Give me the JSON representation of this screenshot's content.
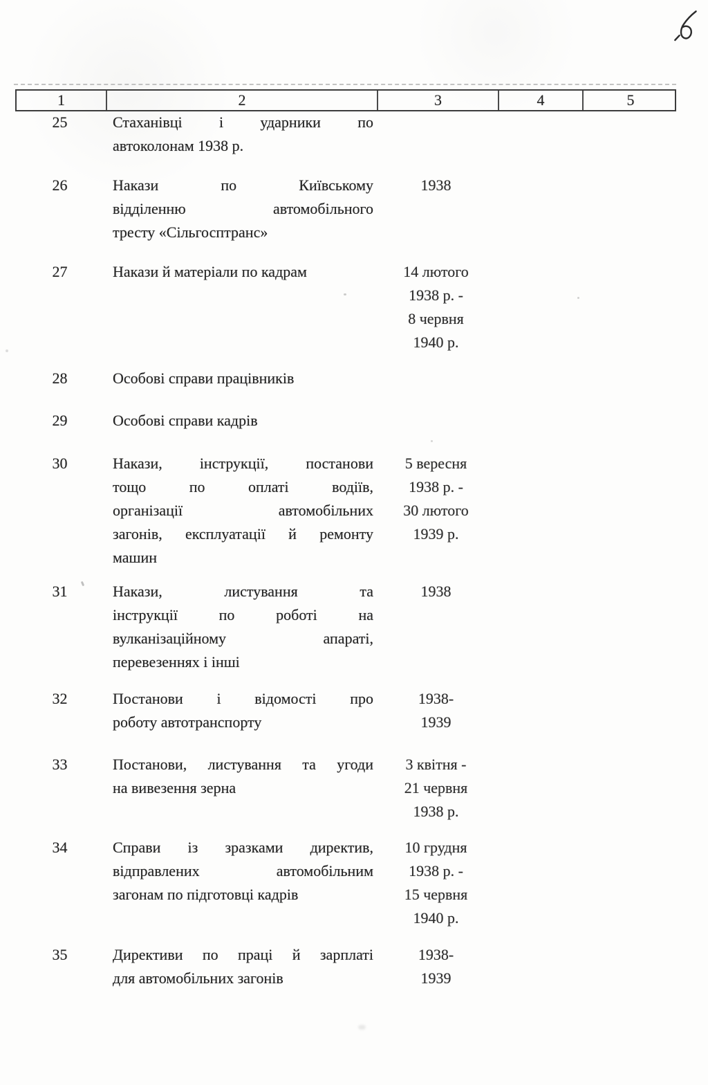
{
  "page": {
    "handwritten_number": "6"
  },
  "table": {
    "column_headers": [
      "1",
      "2",
      "3",
      "4",
      "5"
    ],
    "rows": [
      {
        "number": "25",
        "description_lines": [
          "Стаханівці і ударники по",
          "автоколонам 1938 р."
        ],
        "date_lines": []
      },
      {
        "number": "26",
        "description_lines": [
          "Накази по Київському",
          "відділенню автомобільного",
          "тресту «Сільгосптранс»"
        ],
        "date_lines": [
          "1938"
        ]
      },
      {
        "number": "27",
        "description_lines": [
          "Накази й матеріали по кадрам"
        ],
        "date_lines": [
          "14 лютого",
          "1938 р. -",
          "8 червня",
          "1940 р."
        ]
      },
      {
        "number": "28",
        "description_lines": [
          "Особові справи працівників"
        ],
        "date_lines": []
      },
      {
        "number": "29",
        "description_lines": [
          "Особові справи кадрів"
        ],
        "date_lines": []
      },
      {
        "number": "30",
        "description_lines": [
          "Накази, інструкції, постанови",
          "тощо по оплаті водіїв,",
          "організації автомобільних",
          "загонів, експлуатації й ремонту",
          "машин"
        ],
        "date_lines": [
          "5 вересня",
          "1938 р. -",
          "30 лютого",
          "1939 р."
        ]
      },
      {
        "number": "31",
        "description_lines": [
          "Накази, листування та",
          "інструкції по роботі на",
          "вулканізаційному апараті,",
          "перевезеннях і інші"
        ],
        "date_lines": [
          "1938"
        ]
      },
      {
        "number": "32",
        "description_lines": [
          "Постанови і відомості про",
          "роботу автотранспорту"
        ],
        "date_lines": [
          "1938-",
          "1939"
        ]
      },
      {
        "number": "33",
        "description_lines": [
          "Постанови, листування та угоди",
          "на вивезення зерна"
        ],
        "date_lines": [
          "3 квітня -",
          "21 червня",
          "1938 р."
        ]
      },
      {
        "number": "34",
        "description_lines": [
          "Справи із зразками директив,",
          "відправлених автомобільним",
          "загонам по підготовці кадрів"
        ],
        "date_lines": [
          "10 грудня",
          "1938 р. -",
          "15 червня",
          "1940 р."
        ]
      },
      {
        "number": "35",
        "description_lines": [
          "Директиви по праці й зарплаті",
          "для автомобільних загонів"
        ],
        "date_lines": [
          "1938-",
          "1939"
        ]
      }
    ]
  }
}
